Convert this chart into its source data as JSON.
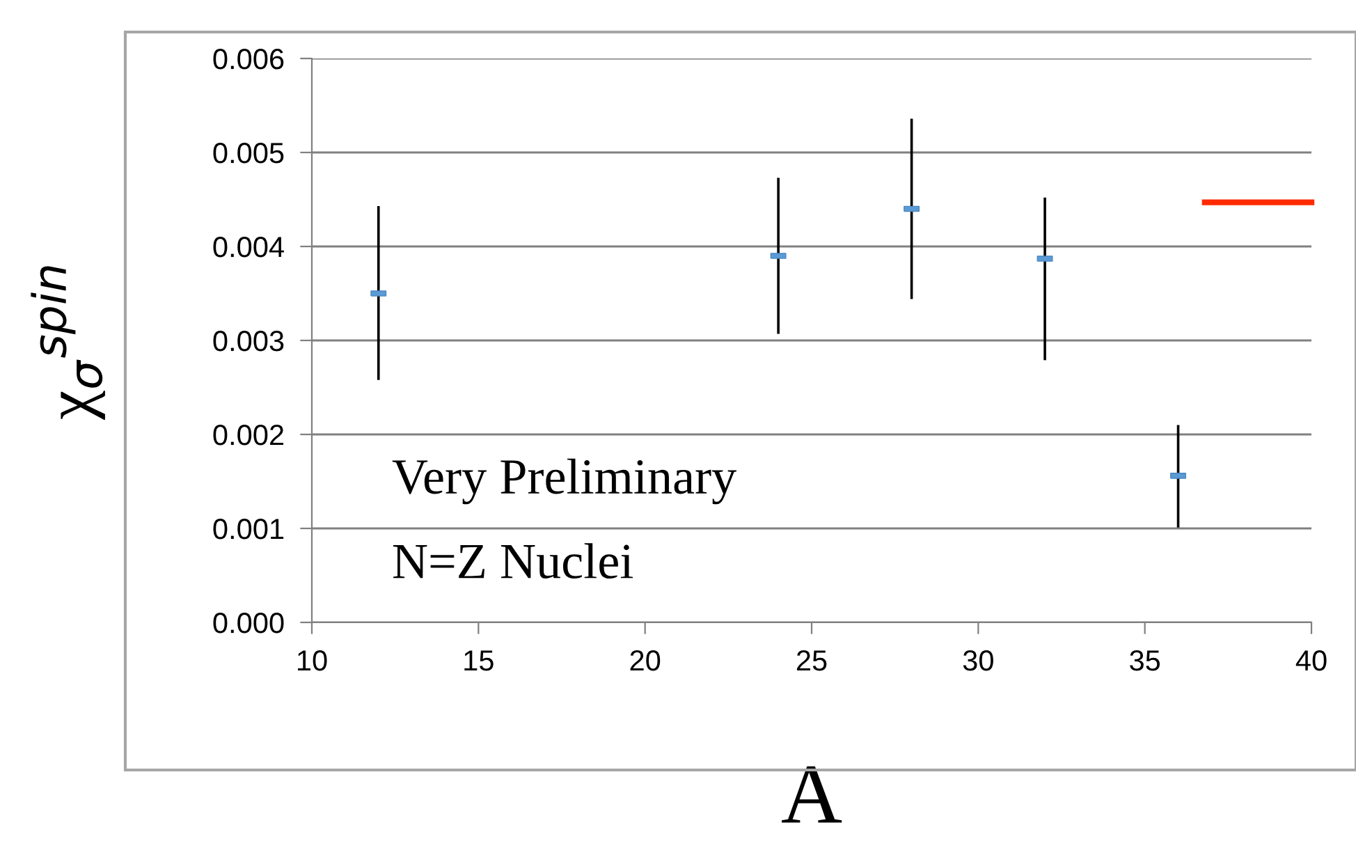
{
  "chart_data": {
    "type": "scatter",
    "xlabel": "A",
    "ylabel": "χ$_{σ}$$^{spin}$",
    "series": [
      {
        "color": "#5b9bd5",
        "marker": "square",
        "x": [
          12,
          24,
          28,
          32,
          36
        ],
        "values": [
          0.0035,
          0.0039,
          0.0044,
          0.00387,
          0.00156
        ],
        "errors": [
          [
            0.00258,
            0.00443
          ],
          [
            0.00307,
            0.00473
          ],
          [
            0.00344,
            0.00536
          ],
          [
            0.00279,
            0.00452
          ],
          [
            0.00101,
            0.0021
          ]
        ]
      },
      {
        "type": "line",
        "color": "#ff2a00",
        "x": [
          36.8,
          40
        ],
        "values": [
          0.00447,
          0.00447
        ]
      }
    ],
    "xlim": [
      10,
      40
    ],
    "xticks": [
      10,
      15,
      20,
      25,
      30,
      35,
      40
    ],
    "ylim": [
      0,
      0.006
    ],
    "yticks": [
      {
        "value": 0,
        "label": "0.000"
      },
      {
        "value": 0.001,
        "label": "0.001"
      },
      {
        "value": 0.002,
        "label": "0.002"
      },
      {
        "value": 0.003,
        "label": "0.003"
      },
      {
        "value": 0.004,
        "label": "0.004"
      },
      {
        "value": 0.005,
        "label": "0.005"
      },
      {
        "value": 0.006,
        "label": "0.006"
      }
    ],
    "grid": "y",
    "annotations": [
      "Very Preliminary",
      "N=Z Nuclei"
    ]
  }
}
